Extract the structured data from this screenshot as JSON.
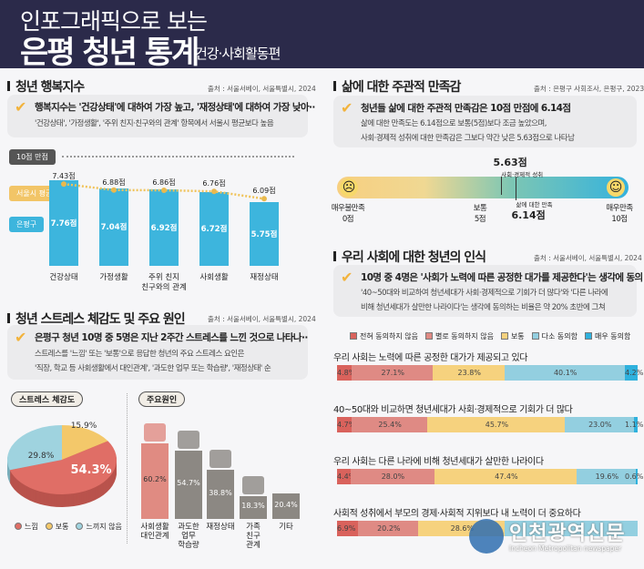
{
  "header": {
    "line1": "인포그래픽으로 보는",
    "title": "은평 청년 통계",
    "subtitle": "건강·사회활동편"
  },
  "happiness": {
    "title": "청년 행복지수",
    "source": "출처 : 서울서베이, 서울특별시, 2024",
    "headline": "행복지수는 '건강상태'에 대하여 가장 높고, '재정상태'에 대하여 가장 낮아··",
    "detail": "'건강상태', '가정생활', '주위 친지·친구와의 관계' 항목에서 서울시 평균보다 높음",
    "max_label": "10점 만점",
    "seoul_label": "서울시 평균",
    "ep_label": "은평구"
  },
  "stress": {
    "title": "청년 스트레스 체감도 및 주요 원인",
    "source": "출처 : 서울서베이, 서울특별시, 2024",
    "headline": "은평구 청년 10명 중 5명은 지난 2주간 스트레스를 느낀 것으로 나타나··",
    "detail1": "스트레스를 '느낌' 또는 '보통'으로 응답한 청년의 주요 스트레스 요인은",
    "detail2": "'직장, 학교 등 사회생활에서 대인관계', '과도한 업무 또는 학습량', '재정상태' 순",
    "pie_title": "스트레스 체감도",
    "cause_title": "주요원인"
  },
  "satisfaction": {
    "title": "삶에 대한 주관적 만족감",
    "source": "출처 : 은평구 사회조사, 은평구, 2023",
    "headline": "청년들 삶에 대한 주관적 만족감은 10점 만점에 6.14점",
    "detail1": "삶에 대한 만족도는 6.14점으로 보통(5점)보다 조금 높았으며,",
    "detail2": "사회·경제적 성취에 대한 만족감은 그보다 약간 낮은 5.63점으로 나타남",
    "social_value": "5.63점",
    "social_label": "사회·경제적 성취",
    "life_value": "6.14점",
    "life_label": "삶에 대한 만족",
    "min_label": "매우불만족",
    "min_value": "0점",
    "mid_label": "보통",
    "mid_value": "5점",
    "max_label": "매우만족",
    "max_value": "10점",
    "social_score": 5.63,
    "life_score": 6.14
  },
  "perception": {
    "title": "우리 사회에 대한 청년의 인식",
    "source": "출처 : 서울서베이, 서울특별시, 2024",
    "headline": "10명 중 4명은 '사회가 노력에 따른 공정한 대가를 제공한다'는 생각에 동의",
    "detail1": "'40~50대와 비교하여 청년세대가 사회·경제적으로 기회가 더 많다'와 '다른 나라에",
    "detail2": "비해 청년세대가 살만한 나라이다'는 생각에 동의하는 비율은 약 20% 초반에 그쳐"
  },
  "watermark": {
    "name": "인천광역신문",
    "sub": "Incheon Metropolitan newspaper"
  },
  "chart_data": [
    {
      "type": "bar",
      "title": "청년 행복지수",
      "categories": [
        "건강상태",
        "가정생활",
        "주위 친지\n친구와의 관계",
        "사회생활",
        "재정상태"
      ],
      "series": [
        {
          "name": "은평구",
          "values": [
            7.76,
            7.04,
            6.92,
            6.72,
            5.75
          ],
          "labels": [
            "7.76점",
            "7.04점",
            "6.92점",
            "6.72점",
            "5.75점"
          ],
          "color": "#3db5dd"
        },
        {
          "name": "서울시 평균",
          "values": [
            7.43,
            6.88,
            6.86,
            6.76,
            6.09
          ],
          "labels": [
            "7.43점",
            "6.88점",
            "6.86점",
            "6.76점",
            "6.09점"
          ],
          "color": "#f2c567"
        }
      ],
      "ylim": [
        0,
        10
      ]
    },
    {
      "type": "pie",
      "title": "스트레스 체감도",
      "slices": [
        {
          "label": "보통",
          "value": 15.9,
          "text": "15.9%",
          "color": "#f3c86a"
        },
        {
          "label": "느낌",
          "value": 54.3,
          "text": "54.3%",
          "color": "#e06e66"
        },
        {
          "label": "느끼지 않음",
          "value": 29.8,
          "text": "29.8%",
          "color": "#9fd3df"
        }
      ],
      "legend": [
        "느낌",
        "보통",
        "느끼지 않음"
      ]
    },
    {
      "type": "bar",
      "title": "주요원인",
      "categories": [
        "사회생활\n대인관계",
        "과도한\n업무\n학습량",
        "재정상태",
        "가족\n친구\n관계",
        "기타"
      ],
      "values": [
        60.2,
        54.7,
        38.8,
        18.3,
        20.4
      ],
      "labels": [
        "60.2%",
        "54.7%",
        "38.8%",
        "18.3%",
        "20.4%"
      ]
    },
    {
      "type": "bar",
      "stacked": true,
      "title": "우리 사회에 대한 청년의 인식",
      "legend": [
        {
          "name": "전혀 동의하지 않음",
          "color": "#d9625c"
        },
        {
          "name": "별로 동의하지 않음",
          "color": "#df8a84"
        },
        {
          "name": "보통",
          "color": "#f6d27e"
        },
        {
          "name": "다소 동의함",
          "color": "#93cfe0"
        },
        {
          "name": "매우 동의함",
          "color": "#2fb1dd"
        }
      ],
      "rows": [
        {
          "label": "우리 사회는 노력에 따른 공정한 대가가 제공되고 있다",
          "values": [
            4.8,
            27.1,
            23.8,
            40.1,
            4.2
          ],
          "texts": [
            "4.8%",
            "27.1%",
            "23.8%",
            "40.1%",
            "4.2%"
          ]
        },
        {
          "label": "40~50대와 비교하면 청년세대가 사회·경제적으로 기회가 더 많다",
          "values": [
            4.7,
            25.4,
            45.7,
            23.0,
            1.1
          ],
          "texts": [
            "4.7%",
            "25.4%",
            "45.7%",
            "23.0%",
            "1.1%"
          ]
        },
        {
          "label": "우리 사회는 다른 나라에 비해 청년세대가 살만한 나라이다",
          "values": [
            4.4,
            28.0,
            47.4,
            19.6,
            0.6
          ],
          "texts": [
            "4.4%",
            "28.0%",
            "47.4%",
            "19.6%",
            "0.6%"
          ]
        },
        {
          "label": "사회적 성취에서 부모의 경제·사회적 지위보다 내 노력이 더 중요하다",
          "values": [
            6.9,
            20.2,
            28.6,
            44.3,
            0
          ],
          "texts": [
            "6.9%",
            "20.2%",
            "28.6%",
            "",
            ""
          ]
        }
      ]
    }
  ]
}
